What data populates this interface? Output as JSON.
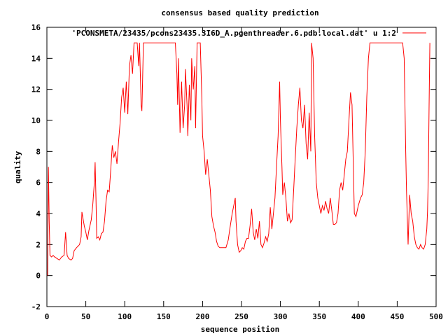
{
  "chart_data": {
    "type": "line",
    "title": "consensus based quality prediction",
    "xlabel": "sequence position",
    "ylabel": "quality",
    "xlim": [
      0,
      500
    ],
    "ylim": [
      -2,
      16
    ],
    "xticks": [
      0,
      50,
      100,
      150,
      200,
      250,
      300,
      350,
      400,
      450,
      500
    ],
    "yticks": [
      -2,
      0,
      2,
      4,
      6,
      8,
      10,
      12,
      14,
      16
    ],
    "grid": false,
    "legend_position": "top-right",
    "series": [
      {
        "name": "'PCONSMETA/23435/pcons23435.3I6D_A.pgenthreader.6.pdb.local.dat' u 1:2",
        "color": "#ff0000",
        "x": [
          1,
          2,
          3,
          4,
          6,
          8,
          10,
          13,
          16,
          19,
          22,
          23,
          24,
          26,
          28,
          31,
          33,
          35,
          38,
          40,
          42,
          44,
          45,
          48,
          50,
          52,
          54,
          57,
          59,
          61,
          62,
          63,
          64,
          66,
          68,
          70,
          72,
          74,
          76,
          78,
          80,
          82,
          84,
          86,
          88,
          90,
          92,
          94,
          96,
          98,
          100,
          102,
          104,
          106,
          108,
          110,
          112,
          114,
          116,
          118,
          119,
          121,
          122,
          124,
          130,
          140,
          150,
          160,
          165,
          167,
          168,
          169,
          171,
          173,
          175,
          177,
          178,
          180,
          181,
          183,
          185,
          186,
          188,
          190,
          191,
          193,
          197,
          199,
          200,
          202,
          204,
          206,
          208,
          210,
          212,
          214,
          216,
          218,
          220,
          222,
          226,
          230,
          233,
          235,
          238,
          242,
          243,
          245,
          247,
          249,
          251,
          253,
          255,
          257,
          259,
          261,
          263,
          265,
          267,
          269,
          271,
          273,
          275,
          277,
          279,
          281,
          283,
          285,
          287,
          289,
          291,
          293,
          295,
          297,
          299,
          300,
          302,
          303,
          305,
          307,
          309,
          311,
          313,
          315,
          317,
          319,
          321,
          323,
          325,
          327,
          329,
          331,
          333,
          335,
          337,
          339,
          340,
          342,
          344,
          346,
          348,
          350,
          352,
          354,
          356,
          358,
          360,
          362,
          364,
          366,
          368,
          370,
          372,
          374,
          376,
          378,
          380,
          382,
          384,
          386,
          388,
          390,
          392,
          395,
          397,
          400,
          403,
          405,
          407,
          409,
          411,
          413,
          415,
          430,
          445,
          457,
          459,
          460,
          461,
          462,
          464,
          466,
          468,
          470,
          472,
          474,
          476,
          478,
          480,
          482,
          484,
          486,
          488,
          489,
          490,
          491,
          492
        ],
        "y": [
          0,
          7,
          3.5,
          1.3,
          1.2,
          1.3,
          1.2,
          1.1,
          1.0,
          1.2,
          1.3,
          2.0,
          2.8,
          1.3,
          1.1,
          1.0,
          1.1,
          1.6,
          1.8,
          1.9,
          2.0,
          2.5,
          4.1,
          3.2,
          2.8,
          2.3,
          2.9,
          3.6,
          4.6,
          6.0,
          7.3,
          5.0,
          2.4,
          2.5,
          2.3,
          2.7,
          2.8,
          3.5,
          4.8,
          5.5,
          5.4,
          6.8,
          8.4,
          7.6,
          8.0,
          7.2,
          8.6,
          9.8,
          11.5,
          12.1,
          10.5,
          12.5,
          10.4,
          13.5,
          14.2,
          13.0,
          15,
          15,
          15,
          13.5,
          15,
          11.0,
          10.6,
          15,
          15,
          15,
          15,
          15,
          15,
          13,
          11,
          14,
          9.2,
          12.5,
          9.5,
          11,
          13.3,
          11,
          9,
          12.3,
          10,
          14.0,
          12,
          13.5,
          9.5,
          15,
          15,
          11.5,
          9,
          8,
          6.5,
          7.5,
          6.5,
          5.5,
          3.8,
          3.2,
          2.8,
          2.2,
          1.9,
          1.8,
          1.8,
          1.8,
          2.3,
          3.0,
          4.0,
          5.0,
          3.5,
          2.0,
          1.5,
          1.6,
          1.8,
          1.7,
          2.2,
          2.4,
          2.4,
          3.2,
          4.3,
          2.8,
          2.3,
          3.0,
          2.4,
          3.5,
          2.0,
          1.8,
          2.1,
          2.5,
          2.2,
          2.7,
          4.4,
          3.0,
          4.0,
          5.0,
          7.0,
          9.0,
          12.5,
          10,
          7.0,
          5.2,
          6.0,
          5.0,
          3.5,
          4.0,
          3.4,
          3.6,
          5.5,
          7.5,
          9.5,
          11.0,
          12.1,
          10,
          9.5,
          11,
          8.5,
          7.5,
          10.5,
          8,
          15,
          14,
          9,
          6,
          5.0,
          4.5,
          4.0,
          4.5,
          4.2,
          4.8,
          4.3,
          4.0,
          5.0,
          4.2,
          3.3,
          3.3,
          3.4,
          4.0,
          5.5,
          6.0,
          5.5,
          6.5,
          7.5,
          8.0,
          10.0,
          11.8,
          11.0,
          4.0,
          3.8,
          4.5,
          5.0,
          5.2,
          6.0,
          8.0,
          11.5,
          14,
          15,
          15,
          15,
          15,
          14,
          11,
          8,
          5.5,
          2.0,
          5.2,
          4.0,
          3.5,
          2.5,
          2.0,
          1.8,
          1.7,
          2.0,
          1.8,
          1.7,
          2.0,
          3.0,
          4.2,
          6.5,
          11,
          15
        ]
      }
    ]
  }
}
